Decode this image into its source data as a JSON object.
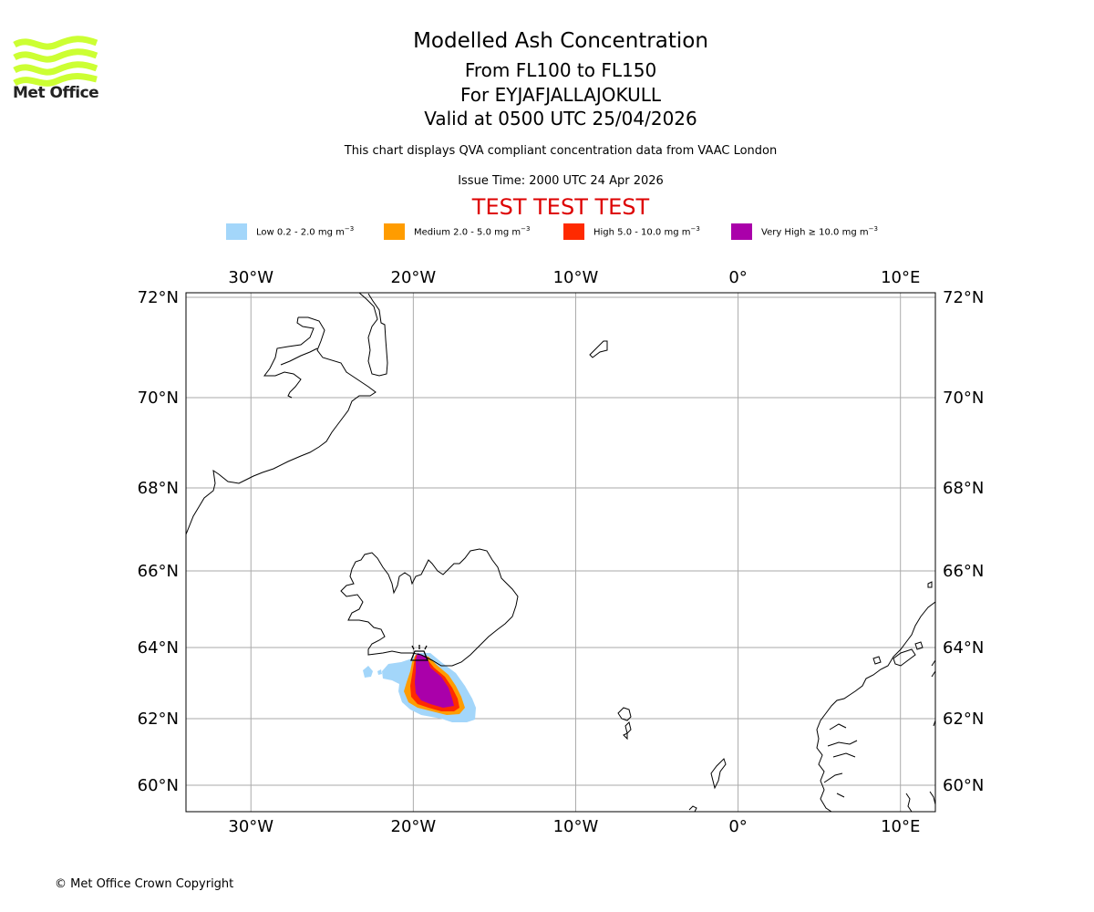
{
  "header": {
    "title": "Modelled Ash Concentration",
    "flight_levels": "From FL100 to FL150",
    "volcano": "For EYJAFJALLAJOKULL",
    "valid_time": "Valid at 0500 UTC 25/04/2026",
    "description": "This chart displays QVA compliant concentration data from VAAC London",
    "issue_time": "Issue Time: 2000 UTC 24 Apr 2026",
    "test_banner": "TEST TEST TEST"
  },
  "logo": {
    "name": "Met Office",
    "color": "#ccff33"
  },
  "legend": [
    {
      "label": "Low 0.2 - 2.0 mg m",
      "exp": "−3",
      "color": "#a3d6fa"
    },
    {
      "label": "Medium 2.0 - 5.0 mg m",
      "exp": "−3",
      "color": "#ff9c00"
    },
    {
      "label": "High 5.0 - 10.0 mg m",
      "exp": "−3",
      "color": "#ff2a00"
    },
    {
      "label": "Very High  ≥  10.0 mg m",
      "exp": "−3",
      "color": "#aa00aa"
    }
  ],
  "map": {
    "lon_ticks": [
      {
        "lon": -30,
        "label": "30°W"
      },
      {
        "lon": -20,
        "label": "20°W"
      },
      {
        "lon": -10,
        "label": "10°W"
      },
      {
        "lon": 0,
        "label": "0°"
      },
      {
        "lon": 10,
        "label": "10°E"
      }
    ],
    "lat_ticks": [
      {
        "lat": 72,
        "label": "72°N"
      },
      {
        "lat": 70,
        "label": "70°N"
      },
      {
        "lat": 68,
        "label": "68°N"
      },
      {
        "lat": 66,
        "label": "66°N"
      },
      {
        "lat": 64,
        "label": "64°N"
      },
      {
        "lat": 62,
        "label": "62°N"
      },
      {
        "lat": 60,
        "label": "60°N"
      }
    ],
    "grid_color": "#aaaaaa",
    "volcano_marker": {
      "lon": -19.6,
      "lat": 63.63
    },
    "ash_levels": [
      "low",
      "medium",
      "high",
      "very_high"
    ]
  },
  "footer": {
    "copyright": "© Met Office Crown Copyright"
  }
}
